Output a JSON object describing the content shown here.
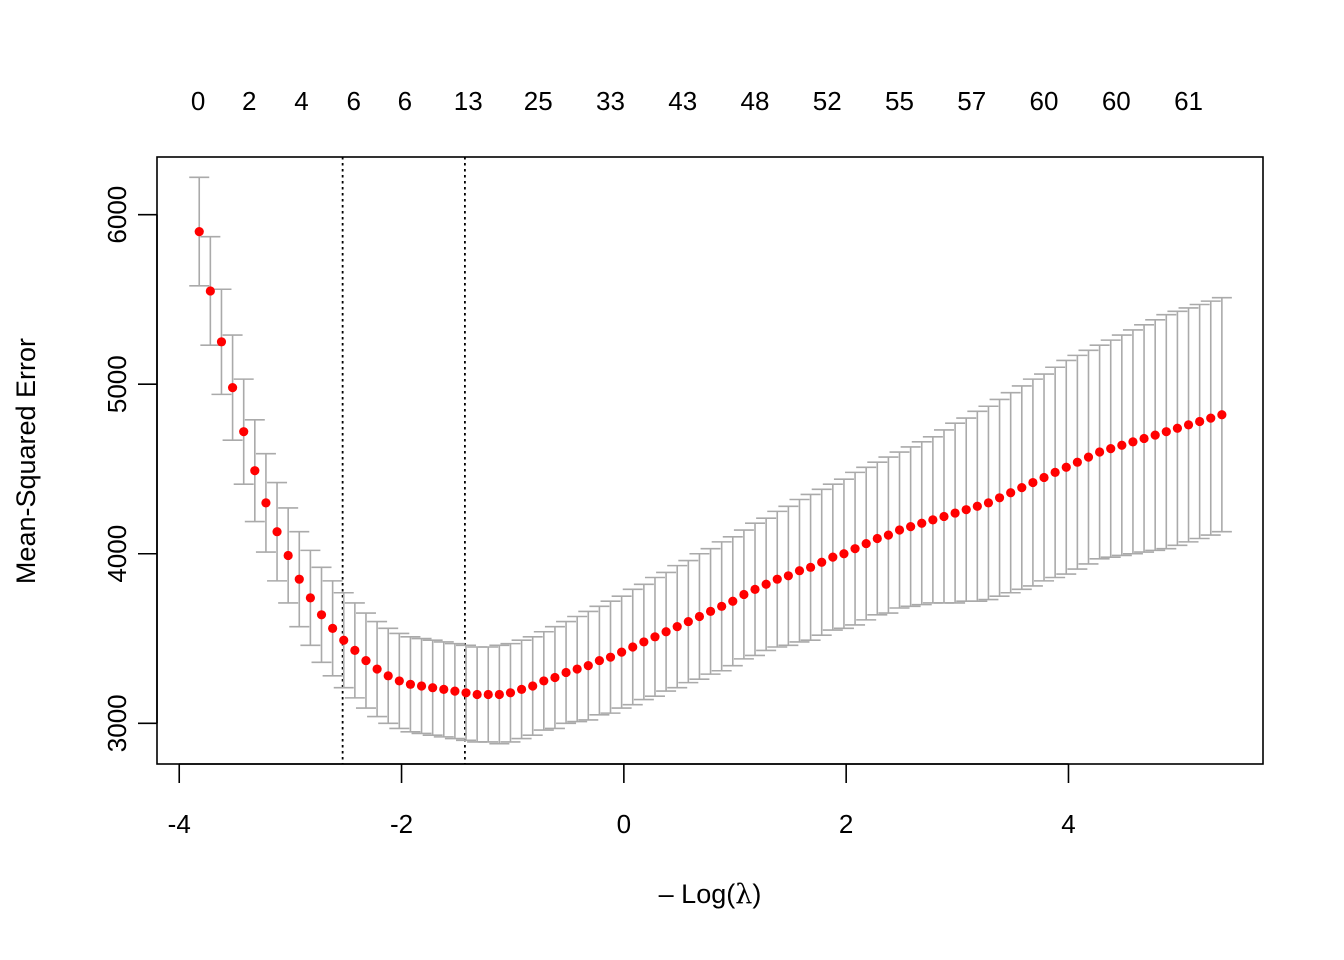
{
  "chart_data": {
    "type": "scatter",
    "title": "",
    "xlabel_prefix": "– Log(",
    "xlabel_symbol": "λ",
    "xlabel_suffix": ")",
    "ylabel": "Mean-Squared Error",
    "xlim": [
      -4.2,
      5.75
    ],
    "ylim": [
      2760,
      6340
    ],
    "x_ticks": [
      -4,
      -2,
      0,
      2,
      4
    ],
    "y_ticks": [
      3000,
      4000,
      5000,
      6000
    ],
    "top_axis": {
      "labels": [
        "0",
        "2",
        "4",
        "6",
        "6",
        "13",
        "25",
        "33",
        "43",
        "48",
        "52",
        "55",
        "57",
        "60",
        "60",
        "61"
      ],
      "positions": [
        -3.83,
        -3.37,
        -2.9,
        -2.43,
        -1.97,
        -1.4,
        -0.77,
        -0.12,
        0.53,
        1.18,
        1.83,
        2.48,
        3.13,
        3.78,
        4.43,
        5.08
      ]
    },
    "reference_lines": [
      {
        "x": -2.53,
        "style": "dotted",
        "color": "#000000"
      },
      {
        "x": -1.43,
        "style": "dotted",
        "color": "#000000"
      }
    ],
    "series": [
      {
        "color": "#ff0000",
        "errorbar_color": "#aaaaaa",
        "x": [
          -3.82,
          -3.72,
          -3.62,
          -3.52,
          -3.42,
          -3.32,
          -3.22,
          -3.12,
          -3.02,
          -2.92,
          -2.82,
          -2.72,
          -2.62,
          -2.52,
          -2.42,
          -2.32,
          -2.22,
          -2.12,
          -2.02,
          -1.92,
          -1.82,
          -1.72,
          -1.62,
          -1.52,
          -1.42,
          -1.32,
          -1.22,
          -1.12,
          -1.02,
          -0.92,
          -0.82,
          -0.72,
          -0.62,
          -0.52,
          -0.42,
          -0.32,
          -0.22,
          -0.12,
          -0.02,
          0.08,
          0.18,
          0.28,
          0.38,
          0.48,
          0.58,
          0.68,
          0.78,
          0.88,
          0.98,
          1.08,
          1.18,
          1.28,
          1.38,
          1.48,
          1.58,
          1.68,
          1.78,
          1.88,
          1.98,
          2.08,
          2.18,
          2.28,
          2.38,
          2.48,
          2.58,
          2.68,
          2.78,
          2.88,
          2.98,
          3.08,
          3.18,
          3.28,
          3.38,
          3.48,
          3.58,
          3.68,
          3.78,
          3.88,
          3.98,
          4.08,
          4.18,
          4.28,
          4.38,
          4.48,
          4.58,
          4.68,
          4.78,
          4.88,
          4.98,
          5.08,
          5.18,
          5.28,
          5.38
        ],
        "mse": [
          5900,
          5550,
          5250,
          4980,
          4720,
          4490,
          4300,
          4130,
          3990,
          3850,
          3740,
          3640,
          3560,
          3490,
          3430,
          3370,
          3320,
          3280,
          3250,
          3230,
          3220,
          3210,
          3200,
          3190,
          3180,
          3170,
          3170,
          3170,
          3180,
          3200,
          3220,
          3250,
          3270,
          3300,
          3320,
          3340,
          3370,
          3390,
          3420,
          3450,
          3480,
          3510,
          3540,
          3570,
          3600,
          3630,
          3660,
          3690,
          3720,
          3760,
          3790,
          3820,
          3850,
          3870,
          3900,
          3920,
          3950,
          3980,
          4000,
          4030,
          4060,
          4090,
          4110,
          4140,
          4160,
          4180,
          4200,
          4220,
          4240,
          4260,
          4280,
          4300,
          4330,
          4360,
          4390,
          4420,
          4450,
          4480,
          4510,
          4540,
          4570,
          4600,
          4620,
          4640,
          4660,
          4680,
          4700,
          4720,
          4740,
          4760,
          4780,
          4800,
          4820
        ],
        "upper": [
          6220,
          5870,
          5560,
          5290,
          5030,
          4790,
          4590,
          4420,
          4270,
          4130,
          4020,
          3920,
          3840,
          3770,
          3710,
          3650,
          3600,
          3560,
          3530,
          3510,
          3500,
          3490,
          3480,
          3470,
          3460,
          3450,
          3450,
          3460,
          3470,
          3490,
          3510,
          3540,
          3570,
          3600,
          3630,
          3660,
          3690,
          3720,
          3750,
          3790,
          3820,
          3860,
          3890,
          3930,
          3960,
          4000,
          4030,
          4070,
          4100,
          4140,
          4180,
          4210,
          4250,
          4280,
          4320,
          4350,
          4380,
          4410,
          4440,
          4480,
          4510,
          4540,
          4570,
          4600,
          4630,
          4660,
          4690,
          4730,
          4770,
          4800,
          4840,
          4870,
          4910,
          4950,
          4990,
          5030,
          5060,
          5100,
          5140,
          5170,
          5200,
          5230,
          5260,
          5290,
          5320,
          5350,
          5380,
          5410,
          5430,
          5450,
          5470,
          5490,
          5510
        ],
        "lower": [
          5580,
          5230,
          4940,
          4670,
          4410,
          4190,
          4010,
          3840,
          3710,
          3570,
          3460,
          3360,
          3280,
          3210,
          3150,
          3090,
          3040,
          3000,
          2970,
          2950,
          2940,
          2930,
          2920,
          2910,
          2900,
          2890,
          2890,
          2880,
          2890,
          2910,
          2930,
          2960,
          2970,
          3000,
          3010,
          3020,
          3050,
          3060,
          3090,
          3110,
          3140,
          3160,
          3190,
          3210,
          3240,
          3260,
          3290,
          3310,
          3340,
          3380,
          3400,
          3430,
          3450,
          3460,
          3480,
          3490,
          3520,
          3550,
          3560,
          3580,
          3610,
          3640,
          3650,
          3680,
          3690,
          3700,
          3710,
          3710,
          3710,
          3720,
          3720,
          3730,
          3750,
          3770,
          3790,
          3810,
          3840,
          3860,
          3880,
          3910,
          3940,
          3970,
          3980,
          3990,
          4000,
          4010,
          4020,
          4030,
          4050,
          4070,
          4090,
          4110,
          4130
        ]
      }
    ]
  }
}
